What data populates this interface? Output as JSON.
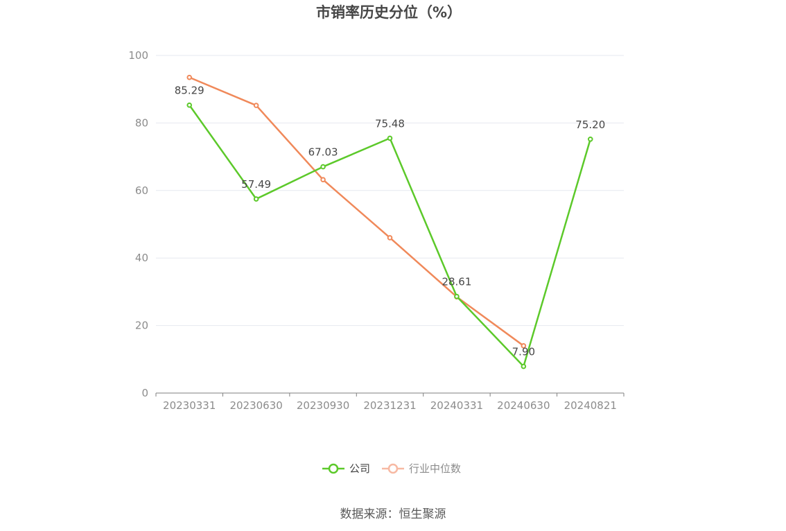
{
  "chart_data": {
    "type": "line",
    "title": "市销率历史分位（%）",
    "categories": [
      "20230331",
      "20230630",
      "20230930",
      "20231231",
      "20240331",
      "20240630",
      "20240821"
    ],
    "ylim": [
      0,
      100
    ],
    "yticks": [
      0,
      20,
      40,
      60,
      80,
      100
    ],
    "grid": true,
    "legend_position": "bottom",
    "series": [
      {
        "name": "公司",
        "color": "#5cc92a",
        "values": [
          85.29,
          57.49,
          67.03,
          75.48,
          28.61,
          7.9,
          75.2
        ],
        "labels": [
          "85.29",
          "57.49",
          "67.03",
          "75.48",
          "28.61",
          "7.90",
          "75.20"
        ]
      },
      {
        "name": "行业中位数",
        "color": "#f0895a",
        "legend_color": "#f7b9a3",
        "values": [
          93.5,
          85.2,
          63.2,
          46.0,
          28.5,
          14.0,
          null
        ]
      }
    ],
    "source": "数据来源：恒生聚源"
  }
}
